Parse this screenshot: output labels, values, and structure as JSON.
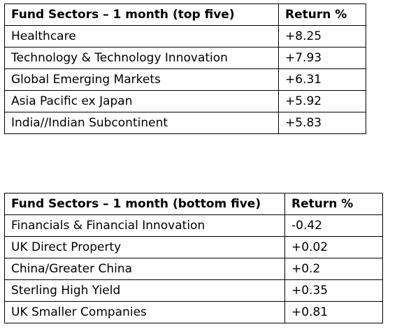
{
  "top_table": {
    "header": {
      "sector": "Fund Sectors – 1 month (top five)",
      "return": "Return %"
    },
    "rows": [
      {
        "sector": "Healthcare",
        "return": "+8.25"
      },
      {
        "sector": "Technology & Technology Innovation",
        "return": "+7.93"
      },
      {
        "sector": "Global Emerging Markets",
        "return": "+6.31"
      },
      {
        "sector": "Asia Pacific ex Japan",
        "return": "+5.92"
      },
      {
        "sector": "India//Indian Subcontinent",
        "return": "+5.83"
      }
    ]
  },
  "bottom_table": {
    "header": {
      "sector": "Fund Sectors – 1 month (bottom five)",
      "return": "Return %"
    },
    "rows": [
      {
        "sector": "Financials & Financial Innovation",
        "return": "-0.42"
      },
      {
        "sector": "UK Direct Property",
        "return": "+0.02"
      },
      {
        "sector": "China/Greater China",
        "return": "+0.2"
      },
      {
        "sector": "Sterling High Yield",
        "return": "+0.35"
      },
      {
        "sector": "UK Smaller Companies",
        "return": "+0.81"
      }
    ]
  }
}
